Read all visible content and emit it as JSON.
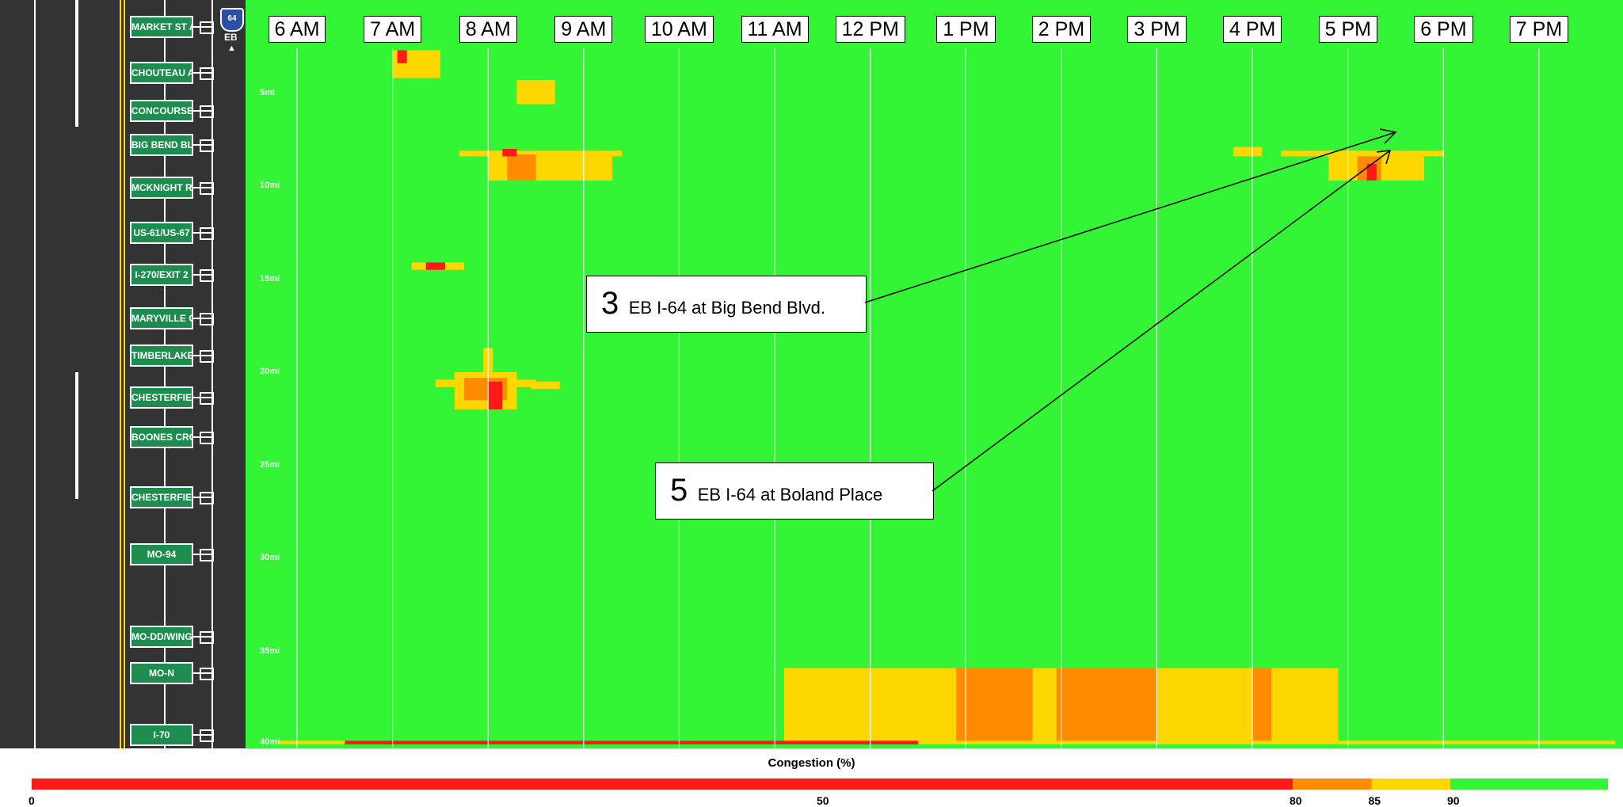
{
  "highway": {
    "shield": "64",
    "direction": "EB",
    "exits": [
      "MARKET ST A",
      "CHOUTEAU A",
      "CONCOURSE",
      "BIG BEND BL",
      "MCKNIGHT R",
      "US-61/US-67",
      "I-270/EXIT 2",
      "MARYVILLE C",
      "TIMBERLAKE",
      "CHESTERFIEI",
      "BOONES CRO",
      "CHESTERFIEI",
      "MO-94",
      "MO-DD/WING",
      "MO-N",
      "I-70"
    ]
  },
  "callouts": [
    {
      "number": "3",
      "text": "EB I-64 at Big Bend Blvd."
    },
    {
      "number": "5",
      "text": "EB I-64 at Boland Place"
    }
  ],
  "colors": {
    "free_flow": "#33f535",
    "light": "#ffd700",
    "moderate": "#ff8c00",
    "heavy": "#ff1a1a",
    "road": "#333333",
    "exit_sign": "#1d8d4f"
  },
  "chart_data": {
    "type": "heatmap",
    "title": "",
    "x_tick_labels": [
      "6 AM",
      "7 AM",
      "8 AM",
      "9 AM",
      "10 AM",
      "11 AM",
      "12 PM",
      "1 PM",
      "2 PM",
      "3 PM",
      "4 PM",
      "5 PM",
      "6 PM",
      "7 PM"
    ],
    "x_range_hours": [
      5.5,
      19.8
    ],
    "y_tick_labels": [
      "5mi",
      "10mi",
      "15mi",
      "20mi",
      "25mi",
      "30mi",
      "35mi",
      "40mi"
    ],
    "y_range_miles": [
      0,
      40
    ],
    "grid": true,
    "color_scale": {
      "title": "Congestion (%)",
      "tick_labels": [
        "0",
        "50",
        "80",
        "85",
        "90"
      ],
      "stops": [
        {
          "from": 0,
          "to": 80,
          "color": "#ff1a1a"
        },
        {
          "from": 80,
          "to": 85,
          "color": "#ff8c00"
        },
        {
          "from": 85,
          "to": 90,
          "color": "#ffd700"
        },
        {
          "from": 90,
          "to": 100,
          "color": "#33f535"
        }
      ]
    },
    "congestion_cells": [
      {
        "t0": 7.0,
        "t1": 7.5,
        "m0": 2.7,
        "m1": 4.2,
        "level": 85
      },
      {
        "t0": 7.05,
        "t1": 7.15,
        "m0": 2.7,
        "m1": 3.4,
        "level": 50
      },
      {
        "t0": 8.3,
        "t1": 8.7,
        "m0": 4.3,
        "m1": 5.6,
        "level": 85
      },
      {
        "t0": 7.7,
        "t1": 9.4,
        "m0": 8.1,
        "m1": 8.4,
        "level": 85
      },
      {
        "t0": 8.0,
        "t1": 9.3,
        "m0": 8.3,
        "m1": 9.7,
        "level": 85
      },
      {
        "t0": 8.2,
        "t1": 8.5,
        "m0": 8.3,
        "m1": 9.7,
        "level": 80
      },
      {
        "t0": 8.15,
        "t1": 8.3,
        "m0": 8.0,
        "m1": 8.4,
        "level": 50
      },
      {
        "t0": 7.2,
        "t1": 7.75,
        "m0": 14.1,
        "m1": 14.5,
        "level": 85
      },
      {
        "t0": 7.35,
        "t1": 7.55,
        "m0": 14.1,
        "m1": 14.5,
        "level": 50
      },
      {
        "t0": 7.95,
        "t1": 8.05,
        "m0": 18.7,
        "m1": 20.0,
        "level": 85
      },
      {
        "t0": 7.45,
        "t1": 8.5,
        "m0": 20.4,
        "m1": 20.8,
        "level": 85
      },
      {
        "t0": 7.65,
        "t1": 8.3,
        "m0": 20.0,
        "m1": 22.0,
        "level": 85
      },
      {
        "t0": 7.75,
        "t1": 8.2,
        "m0": 20.3,
        "m1": 21.5,
        "level": 80
      },
      {
        "t0": 8.0,
        "t1": 8.15,
        "m0": 20.5,
        "m1": 22.0,
        "level": 50
      },
      {
        "t0": 8.45,
        "t1": 8.75,
        "m0": 20.5,
        "m1": 20.9,
        "level": 85
      },
      {
        "t0": 15.8,
        "t1": 16.1,
        "m0": 7.9,
        "m1": 8.4,
        "level": 85
      },
      {
        "t0": 16.3,
        "t1": 18.0,
        "m0": 8.1,
        "m1": 8.4,
        "level": 85
      },
      {
        "t0": 16.8,
        "t1": 17.8,
        "m0": 8.4,
        "m1": 9.7,
        "level": 85
      },
      {
        "t0": 17.1,
        "t1": 17.35,
        "m0": 8.4,
        "m1": 9.7,
        "level": 80
      },
      {
        "t0": 17.2,
        "t1": 17.3,
        "m0": 8.8,
        "m1": 9.7,
        "level": 50
      },
      {
        "t0": 11.1,
        "t1": 16.9,
        "m0": 35.9,
        "m1": 40.0,
        "level": 85
      },
      {
        "t0": 12.9,
        "t1": 13.7,
        "m0": 35.9,
        "m1": 40.0,
        "level": 80
      },
      {
        "t0": 13.95,
        "t1": 14.95,
        "m0": 35.9,
        "m1": 40.0,
        "level": 80
      },
      {
        "t0": 14.5,
        "t1": 15.0,
        "m0": 35.9,
        "m1": 40.0,
        "level": 80
      },
      {
        "t0": 16.0,
        "t1": 16.2,
        "m0": 35.9,
        "m1": 40.0,
        "level": 80
      },
      {
        "t0": 5.8,
        "t1": 19.8,
        "m0": 39.8,
        "m1": 40.0,
        "level": 85
      },
      {
        "t0": 6.5,
        "t1": 12.5,
        "m0": 39.8,
        "m1": 40.0,
        "level": 50
      }
    ]
  }
}
